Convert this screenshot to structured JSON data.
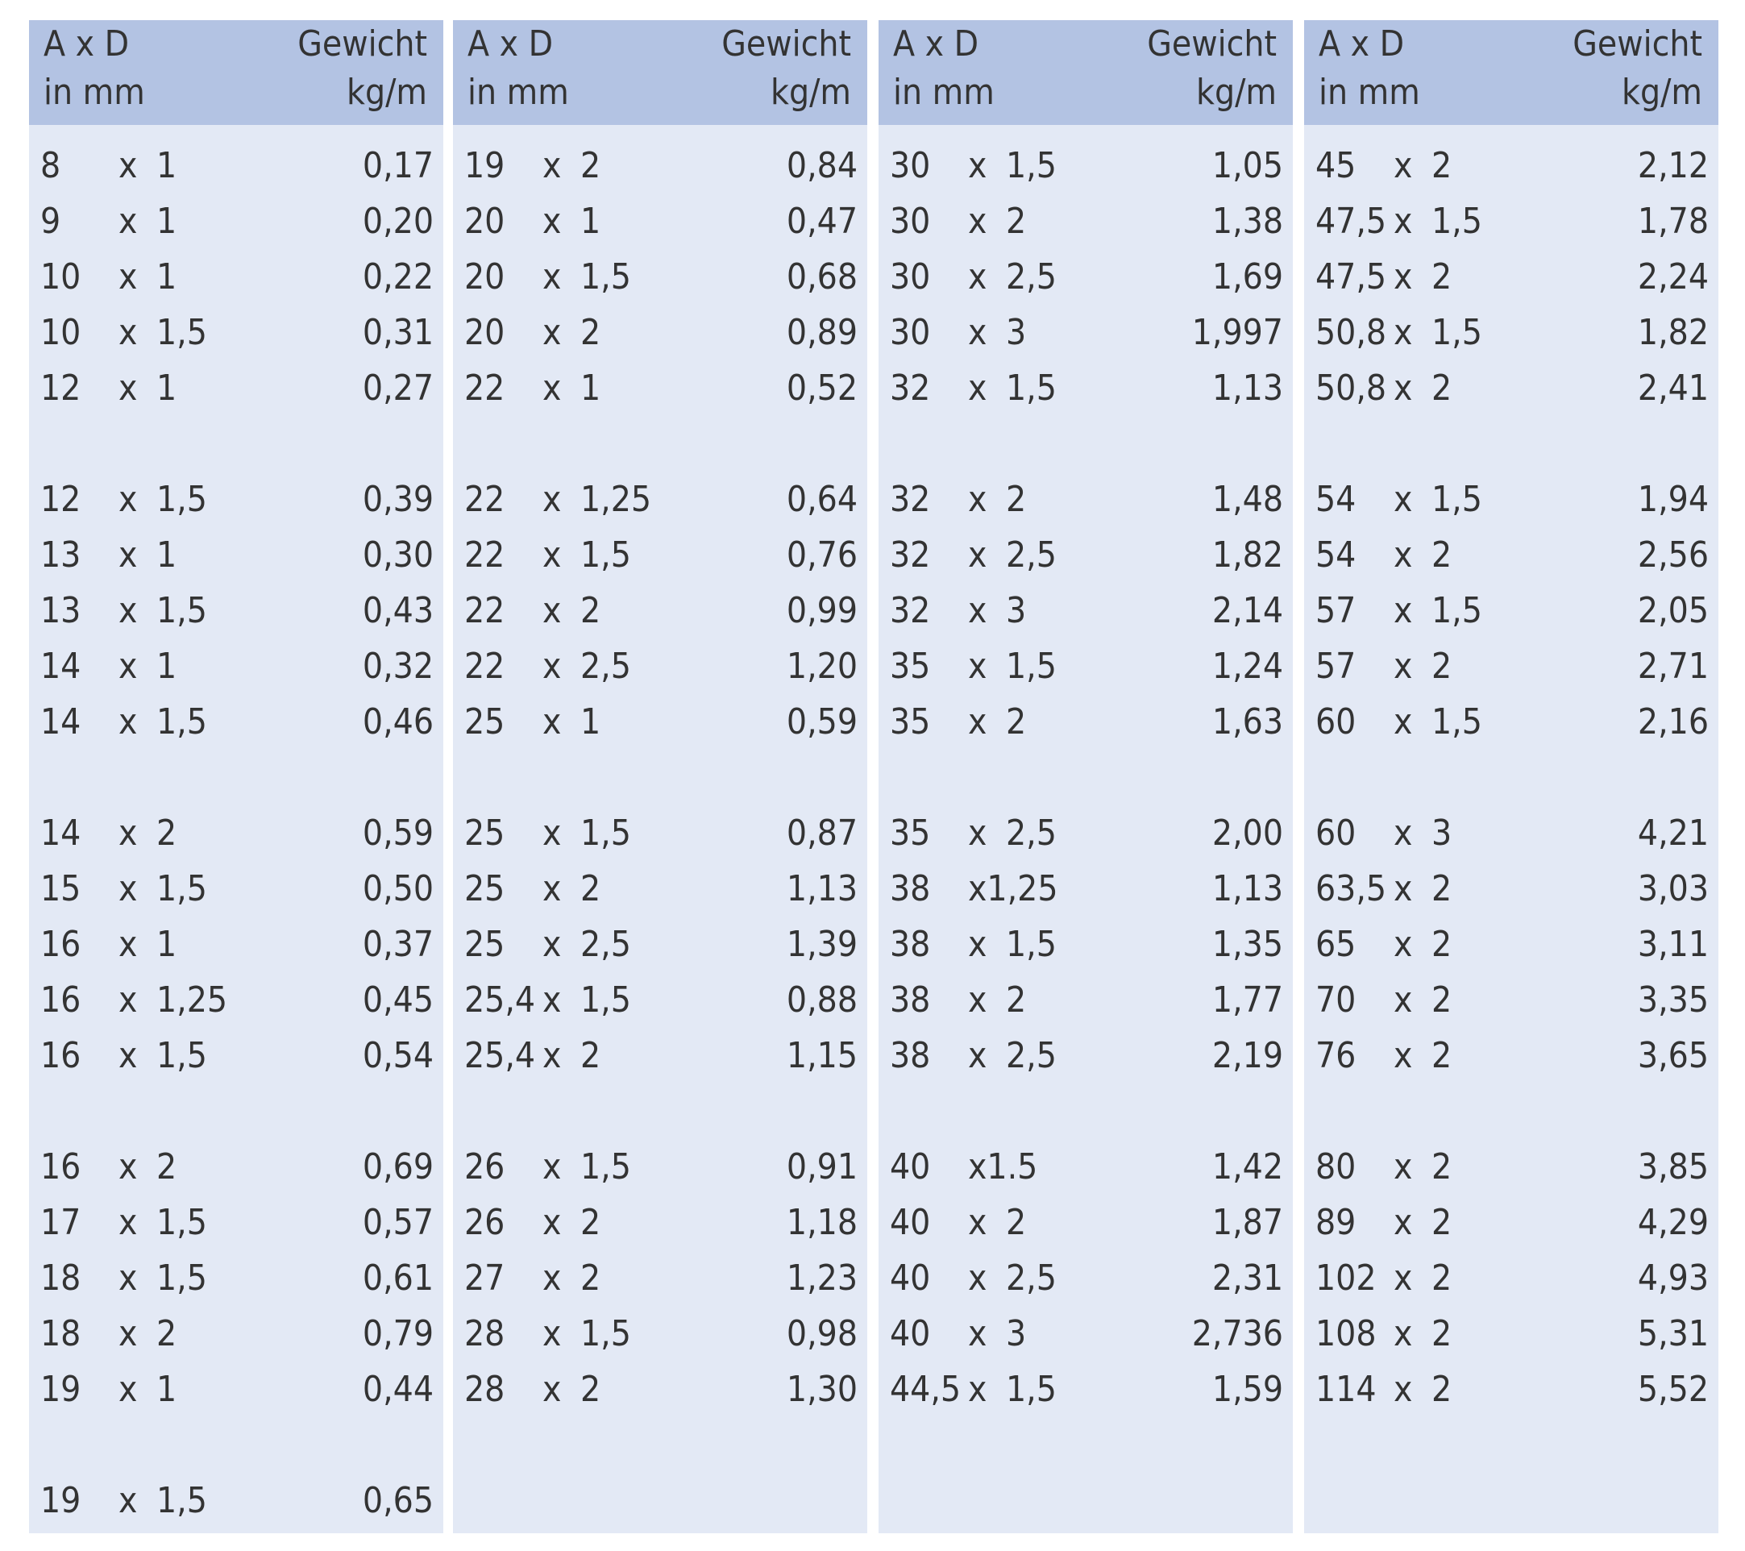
{
  "header": {
    "size_label": "A x D",
    "size_unit": "in mm",
    "weight_label": "Gewicht",
    "weight_unit": "kg/m"
  },
  "columns": [
    {
      "rows": [
        [
          "8",
          "x",
          "1",
          "0,17"
        ],
        [
          "9",
          "x",
          "1",
          "0,20"
        ],
        [
          "10",
          "x",
          "1",
          "0,22"
        ],
        [
          "10",
          "x",
          "1,5",
          "0,31"
        ],
        [
          "12",
          "x",
          "1",
          "0,27"
        ],
        [
          "12",
          "x",
          "1,5",
          "0,39"
        ],
        [
          "13",
          "x",
          "1",
          "0,30"
        ],
        [
          "13",
          "x",
          "1,5",
          "0,43"
        ],
        [
          "14",
          "x",
          "1",
          "0,32"
        ],
        [
          "14",
          "x",
          "1,5",
          "0,46"
        ],
        [
          "14",
          "x",
          "2",
          "0,59"
        ],
        [
          "15",
          "x",
          "1,5",
          "0,50"
        ],
        [
          "16",
          "x",
          "1",
          "0,37"
        ],
        [
          "16",
          "x",
          "1,25",
          "0,45"
        ],
        [
          "16",
          "x",
          "1,5",
          "0,54"
        ],
        [
          "16",
          "x",
          "2",
          "0,69"
        ],
        [
          "17",
          "x",
          "1,5",
          "0,57"
        ],
        [
          "18",
          "x",
          "1,5",
          "0,61"
        ],
        [
          "18",
          "x",
          "2",
          "0,79"
        ],
        [
          "19",
          "x",
          "1",
          "0,44"
        ],
        [
          "19",
          "x",
          "1,5",
          "0,65"
        ]
      ]
    },
    {
      "rows": [
        [
          "19",
          "x",
          "2",
          "0,84"
        ],
        [
          "20",
          "x",
          "1",
          "0,47"
        ],
        [
          "20",
          "x",
          "1,5",
          "0,68"
        ],
        [
          "20",
          "x",
          "2",
          "0,89"
        ],
        [
          "22",
          "x",
          "1",
          "0,52"
        ],
        [
          "22",
          "x",
          "1,25",
          "0,64"
        ],
        [
          "22",
          "x",
          "1,5",
          "0,76"
        ],
        [
          "22",
          "x",
          "2",
          "0,99"
        ],
        [
          "22",
          "x",
          "2,5",
          "1,20"
        ],
        [
          "25",
          "x",
          "1",
          "0,59"
        ],
        [
          "25",
          "x",
          "1,5",
          "0,87"
        ],
        [
          "25",
          "x",
          "2",
          "1,13"
        ],
        [
          "25",
          "x",
          "2,5",
          "1,39"
        ],
        [
          "25,4",
          "x",
          "1,5",
          "0,88"
        ],
        [
          "25,4",
          "x",
          "2",
          "1,15"
        ],
        [
          "26",
          "x",
          "1,5",
          "0,91"
        ],
        [
          "26",
          "x",
          "2",
          "1,18"
        ],
        [
          "27",
          "x",
          "2",
          "1,23"
        ],
        [
          "28",
          "x",
          "1,5",
          "0,98"
        ],
        [
          "28",
          "x",
          "2",
          "1,30"
        ]
      ]
    },
    {
      "rows": [
        [
          "30",
          "x",
          "1,5",
          "1,05"
        ],
        [
          "30",
          "x",
          "2",
          "1,38"
        ],
        [
          "30",
          "x",
          "2,5",
          "1,69"
        ],
        [
          "30",
          "x",
          "3",
          "1,997"
        ],
        [
          "32",
          "x",
          "1,5",
          "1,13"
        ],
        [
          "32",
          "x",
          "2",
          "1,48"
        ],
        [
          "32",
          "x",
          "2,5",
          "1,82"
        ],
        [
          "32",
          "x",
          "3",
          "2,14"
        ],
        [
          "35",
          "x",
          "1,5",
          "1,24"
        ],
        [
          "35",
          "x",
          "2",
          "1,63"
        ],
        [
          "35",
          "x",
          "2,5",
          "2,00"
        ],
        [
          "38",
          "x1,25",
          "1,13"
        ],
        [
          "38",
          "x",
          "1,5",
          "1,35"
        ],
        [
          "38",
          "x",
          "2",
          "1,77"
        ],
        [
          "38",
          "x",
          "2,5",
          "2,19"
        ],
        [
          "40",
          "x1.5",
          "1,42"
        ],
        [
          "40",
          "x",
          "2",
          "1,87"
        ],
        [
          "40",
          "x",
          "2,5",
          "2,31"
        ],
        [
          "40",
          "x",
          "3",
          "2,736"
        ],
        [
          "44,5",
          "x",
          "1,5",
          "1,59"
        ]
      ]
    },
    {
      "rows": [
        [
          "45",
          "x",
          "2",
          "2,12"
        ],
        [
          "47,5",
          "x",
          "1,5",
          "1,78"
        ],
        [
          "47,5",
          "x",
          "2",
          "2,24"
        ],
        [
          "50,8",
          "x",
          "1,5",
          "1,82"
        ],
        [
          "50,8",
          "x",
          "2",
          "2,41"
        ],
        [
          "54",
          "x",
          "1,5",
          "1,94"
        ],
        [
          "54",
          "x",
          "2",
          "2,56"
        ],
        [
          "57",
          "x",
          "1,5",
          "2,05"
        ],
        [
          "57",
          "x",
          "2",
          "2,71"
        ],
        [
          "60",
          "x",
          "1,5",
          "2,16"
        ],
        [
          "60",
          "x",
          "3",
          "4,21"
        ],
        [
          "63,5",
          "x",
          "2",
          "3,03"
        ],
        [
          "65",
          "x",
          "2",
          "3,11"
        ],
        [
          "70",
          "x",
          "2",
          "3,35"
        ],
        [
          "76",
          "x",
          "2",
          "3,65"
        ],
        [
          "80",
          "x",
          "2",
          "3,85"
        ],
        [
          "89",
          "x",
          "2",
          "4,29"
        ],
        [
          "102",
          "x",
          "2",
          "4,93"
        ],
        [
          "108",
          "x",
          "2",
          "5,31"
        ],
        [
          "114",
          "x",
          "2",
          "5,52"
        ]
      ]
    }
  ]
}
